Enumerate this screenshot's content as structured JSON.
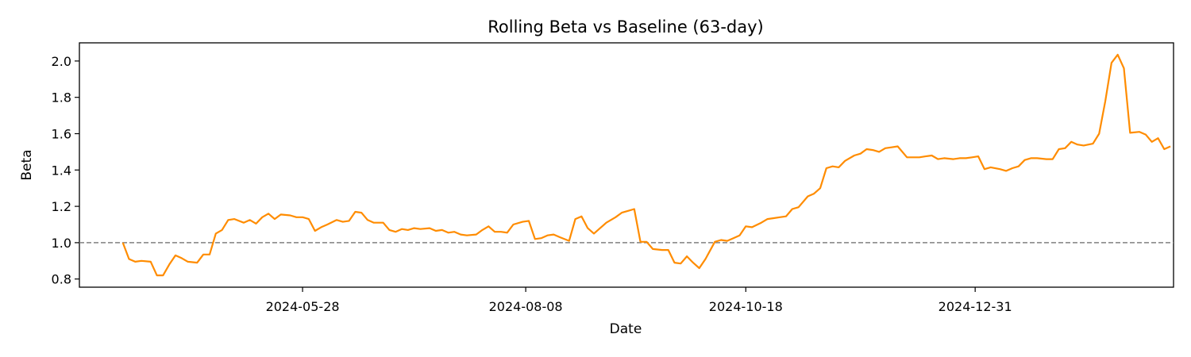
{
  "chart_data": {
    "type": "line",
    "title": "Rolling Beta vs Baseline (63-day)",
    "xlabel": "Date",
    "ylabel": "Beta",
    "x_range": [
      "2024-03-17",
      "2025-03-05"
    ],
    "ylim": [
      0.755,
      2.1
    ],
    "y_ticks": [
      0.8,
      1.0,
      1.2,
      1.4,
      1.6,
      1.8,
      2.0
    ],
    "y_tick_labels": [
      "0.8",
      "1.0",
      "1.2",
      "1.4",
      "1.6",
      "1.8",
      "2.0"
    ],
    "x_ticks": [
      "2024-05-28",
      "2024-08-08",
      "2024-10-18",
      "2024-12-31"
    ],
    "x_tick_labels": [
      "2024-05-28",
      "2024-08-08",
      "2024-10-18",
      "2024-12-31"
    ],
    "grid": false,
    "baseline": {
      "y": 1.0,
      "style": "dashed",
      "color": "#808080"
    },
    "series": [
      {
        "color": "#ff8c00",
        "points": [
          [
            "2024-03-31",
            1.0
          ],
          [
            "2024-04-02",
            0.91
          ],
          [
            "2024-04-04",
            0.895
          ],
          [
            "2024-04-06",
            0.9
          ],
          [
            "2024-04-09",
            0.895
          ],
          [
            "2024-04-11",
            0.82
          ],
          [
            "2024-04-13",
            0.82
          ],
          [
            "2024-04-15",
            0.88
          ],
          [
            "2024-04-17",
            0.93
          ],
          [
            "2024-04-19",
            0.915
          ],
          [
            "2024-04-21",
            0.895
          ],
          [
            "2024-04-24",
            0.89
          ],
          [
            "2024-04-26",
            0.935
          ],
          [
            "2024-04-28",
            0.935
          ],
          [
            "2024-04-30",
            1.05
          ],
          [
            "2024-05-02",
            1.07
          ],
          [
            "2024-05-04",
            1.125
          ],
          [
            "2024-05-06",
            1.13
          ],
          [
            "2024-05-09",
            1.11
          ],
          [
            "2024-05-11",
            1.125
          ],
          [
            "2024-05-13",
            1.105
          ],
          [
            "2024-05-15",
            1.14
          ],
          [
            "2024-05-17",
            1.16
          ],
          [
            "2024-05-19",
            1.13
          ],
          [
            "2024-05-21",
            1.155
          ],
          [
            "2024-05-24",
            1.15
          ],
          [
            "2024-05-26",
            1.14
          ],
          [
            "2024-05-28",
            1.14
          ],
          [
            "2024-05-30",
            1.13
          ],
          [
            "2024-06-01",
            1.065
          ],
          [
            "2024-06-03",
            1.085
          ],
          [
            "2024-06-05",
            1.1
          ],
          [
            "2024-06-08",
            1.125
          ],
          [
            "2024-06-10",
            1.115
          ],
          [
            "2024-06-12",
            1.12
          ],
          [
            "2024-06-14",
            1.17
          ],
          [
            "2024-06-16",
            1.165
          ],
          [
            "2024-06-18",
            1.125
          ],
          [
            "2024-06-20",
            1.11
          ],
          [
            "2024-06-23",
            1.11
          ],
          [
            "2024-06-25",
            1.07
          ],
          [
            "2024-06-27",
            1.06
          ],
          [
            "2024-06-29",
            1.075
          ],
          [
            "2024-07-01",
            1.07
          ],
          [
            "2024-07-03",
            1.08
          ],
          [
            "2024-07-05",
            1.075
          ],
          [
            "2024-07-08",
            1.08
          ],
          [
            "2024-07-10",
            1.065
          ],
          [
            "2024-07-12",
            1.07
          ],
          [
            "2024-07-14",
            1.055
          ],
          [
            "2024-07-16",
            1.06
          ],
          [
            "2024-07-18",
            1.045
          ],
          [
            "2024-07-20",
            1.04
          ],
          [
            "2024-07-23",
            1.045
          ],
          [
            "2024-07-25",
            1.07
          ],
          [
            "2024-07-27",
            1.09
          ],
          [
            "2024-07-29",
            1.06
          ],
          [
            "2024-07-31",
            1.06
          ],
          [
            "2024-08-02",
            1.055
          ],
          [
            "2024-08-04",
            1.1
          ],
          [
            "2024-08-07",
            1.115
          ],
          [
            "2024-08-09",
            1.12
          ],
          [
            "2024-08-11",
            1.02
          ],
          [
            "2024-08-13",
            1.025
          ],
          [
            "2024-08-15",
            1.04
          ],
          [
            "2024-08-17",
            1.045
          ],
          [
            "2024-08-19",
            1.03
          ],
          [
            "2024-08-22",
            1.01
          ],
          [
            "2024-08-24",
            1.13
          ],
          [
            "2024-08-26",
            1.145
          ],
          [
            "2024-08-28",
            1.08
          ],
          [
            "2024-08-30",
            1.05
          ],
          [
            "2024-09-01",
            1.08
          ],
          [
            "2024-09-03",
            1.11
          ],
          [
            "2024-09-06",
            1.14
          ],
          [
            "2024-09-08",
            1.165
          ],
          [
            "2024-09-10",
            1.175
          ],
          [
            "2024-09-12",
            1.185
          ],
          [
            "2024-09-14",
            1.005
          ],
          [
            "2024-09-16",
            1.005
          ],
          [
            "2024-09-18",
            0.965
          ],
          [
            "2024-09-21",
            0.96
          ],
          [
            "2024-09-23",
            0.96
          ],
          [
            "2024-09-25",
            0.89
          ],
          [
            "2024-09-27",
            0.885
          ],
          [
            "2024-09-29",
            0.925
          ],
          [
            "2024-10-01",
            0.89
          ],
          [
            "2024-10-03",
            0.86
          ],
          [
            "2024-10-05",
            0.91
          ],
          [
            "2024-10-08",
            1.005
          ],
          [
            "2024-10-10",
            1.015
          ],
          [
            "2024-10-12",
            1.01
          ],
          [
            "2024-10-14",
            1.025
          ],
          [
            "2024-10-16",
            1.04
          ],
          [
            "2024-10-18",
            1.09
          ],
          [
            "2024-10-20",
            1.085
          ],
          [
            "2024-10-23",
            1.11
          ],
          [
            "2024-10-25",
            1.13
          ],
          [
            "2024-10-27",
            1.135
          ],
          [
            "2024-10-29",
            1.14
          ],
          [
            "2024-10-31",
            1.145
          ],
          [
            "2024-11-02",
            1.185
          ],
          [
            "2024-11-04",
            1.195
          ],
          [
            "2024-11-07",
            1.255
          ],
          [
            "2024-11-09",
            1.27
          ],
          [
            "2024-11-11",
            1.3
          ],
          [
            "2024-11-13",
            1.41
          ],
          [
            "2024-11-15",
            1.42
          ],
          [
            "2024-11-17",
            1.415
          ],
          [
            "2024-11-19",
            1.45
          ],
          [
            "2024-11-22",
            1.48
          ],
          [
            "2024-11-24",
            1.49
          ],
          [
            "2024-11-26",
            1.515
          ],
          [
            "2024-11-28",
            1.51
          ],
          [
            "2024-11-30",
            1.5
          ],
          [
            "2024-12-02",
            1.52
          ],
          [
            "2024-12-04",
            1.525
          ],
          [
            "2024-12-06",
            1.53
          ],
          [
            "2024-12-09",
            1.47
          ],
          [
            "2024-12-11",
            1.47
          ],
          [
            "2024-12-13",
            1.47
          ],
          [
            "2024-12-15",
            1.475
          ],
          [
            "2024-12-17",
            1.48
          ],
          [
            "2024-12-19",
            1.46
          ],
          [
            "2024-12-21",
            1.465
          ],
          [
            "2024-12-24",
            1.46
          ],
          [
            "2024-12-26",
            1.465
          ],
          [
            "2024-12-28",
            1.465
          ],
          [
            "2024-12-30",
            1.47
          ],
          [
            "2025-01-01",
            1.475
          ],
          [
            "2025-01-03",
            1.405
          ],
          [
            "2025-01-05",
            1.415
          ],
          [
            "2025-01-08",
            1.405
          ],
          [
            "2025-01-10",
            1.395
          ],
          [
            "2025-01-12",
            1.41
          ],
          [
            "2025-01-14",
            1.42
          ],
          [
            "2025-01-16",
            1.455
          ],
          [
            "2025-01-18",
            1.465
          ],
          [
            "2025-01-20",
            1.465
          ],
          [
            "2025-01-23",
            1.46
          ],
          [
            "2025-01-25",
            1.46
          ],
          [
            "2025-01-27",
            1.515
          ],
          [
            "2025-01-29",
            1.52
          ],
          [
            "2025-01-31",
            1.555
          ],
          [
            "2025-02-02",
            1.54
          ],
          [
            "2025-02-04",
            1.535
          ],
          [
            "2025-02-07",
            1.545
          ],
          [
            "2025-02-09",
            1.6
          ],
          [
            "2025-02-11",
            1.78
          ],
          [
            "2025-02-13",
            1.99
          ],
          [
            "2025-02-15",
            2.035
          ],
          [
            "2025-02-17",
            1.96
          ],
          [
            "2025-02-19",
            1.605
          ],
          [
            "2025-02-22",
            1.61
          ],
          [
            "2025-02-24",
            1.595
          ],
          [
            "2025-02-26",
            1.555
          ],
          [
            "2025-02-28",
            1.575
          ],
          [
            "2025-03-02",
            1.515
          ],
          [
            "2025-03-04",
            1.53
          ]
        ]
      }
    ]
  }
}
